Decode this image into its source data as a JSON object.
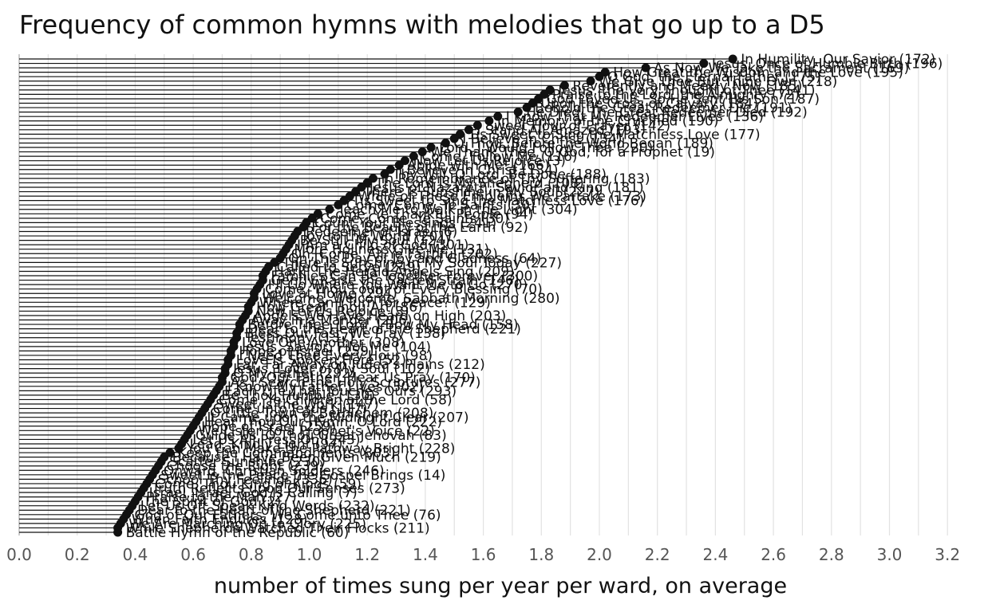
{
  "chart_data": {
    "type": "lollipop",
    "title": "Frequency of common hymns with melodies that go up to a D5",
    "xlabel": "number of times sung per year per ward, on average",
    "ylabel": "",
    "xlim": [
      0,
      3.3
    ],
    "xticks": [
      "0.0",
      "0.2",
      "0.4",
      "0.6",
      "0.8",
      "1.0",
      "1.2",
      "1.4",
      "1.6",
      "1.8",
      "2.0",
      "2.2",
      "2.4",
      "2.6",
      "2.8",
      "3.0",
      "3.2"
    ],
    "grid": "vertical",
    "points": [
      {
        "label": "In Humility, Our Savior (172)",
        "value": 2.46
      },
      {
        "label": "Jesus, Once of Humble Birth (196)",
        "value": 2.36
      },
      {
        "label": "As Now We Take the Sacrament (169)",
        "value": 2.16
      },
      {
        "label": "How Great the Wisdom and the Love (195)",
        "value": 2.02
      },
      {
        "label": "O God, the Eternal Father (175)",
        "value": 2.0
      },
      {
        "label": "We Give Thee But Thine Own (218)",
        "value": 1.97
      },
      {
        "label": "Reverently and Meekly Now (185)",
        "value": 1.88
      },
      {
        "label": "Jesus, the Very Thought of Thee (141)",
        "value": 1.83
      },
      {
        "label": "Praise to the Lord, the Almighty (72)",
        "value": 1.81
      },
      {
        "label": "God Loved Us, So He Sent His Son (187)",
        "value": 1.79
      },
      {
        "label": "Upon the Cross of Calvary (184)",
        "value": 1.77
      },
      {
        "label": "Behold the Great Redeemer Die (191)",
        "value": 1.75
      },
      {
        "label": "He Died! The Great Redeemer Died (192)",
        "value": 1.72
      },
      {
        "label": "I Know That My Redeemer Lives (136)",
        "value": 1.65
      },
      {
        "label": "In Memory of the Crucified (190)",
        "value": 1.62
      },
      {
        "label": "Sweet Hour of Prayer (142)",
        "value": 1.58
      },
      {
        "label": "I Stand All Amazed (193)",
        "value": 1.55
      },
      {
        "label": "Tis Sweet to Sing the Matchless Love (177)",
        "value": 1.52
      },
      {
        "label": "I Believe in Christ (134)",
        "value": 1.5
      },
      {
        "label": "O Thou, Before the World Began (189)",
        "value": 1.47
      },
      {
        "label": "Lord, I Would Follow Thee (220)",
        "value": 1.42
      },
      {
        "label": "We Thank Thee, O God, for a Prophet (19)",
        "value": 1.39
      },
      {
        "label": "Come, Follow Me (116)",
        "value": 1.36
      },
      {
        "label": "Now Let Us Rejoice (3)",
        "value": 1.33
      },
      {
        "label": "Abide with Me! (166)",
        "value": 1.31
      },
      {
        "label": "I Believe in Christ (134)",
        "value": 1.28
      },
      {
        "label": "Thy Will, O Lord, Be Done (188)",
        "value": 1.26
      },
      {
        "label": "In Remembrance of Thy Suffering (183)",
        "value": 1.22
      },
      {
        "label": "The Lord Is My Shepherd (108)",
        "value": 1.2
      },
      {
        "label": "Jesus of Nazareth, Savior and King (181)",
        "value": 1.18
      },
      {
        "label": "There Is Sunshine in My Soul (227)",
        "value": 1.16
      },
      {
        "label": "While of These Emblems We Partake (173)",
        "value": 1.14
      },
      {
        "label": "Tis Sweet to Sing the Matchless Love (176)",
        "value": 1.12
      },
      {
        "label": "Come, Come, Ye Saints (30)",
        "value": 1.1
      },
      {
        "label": "Teach Me to Walk in the Light (304)",
        "value": 1.07
      },
      {
        "label": "Come, Ye Thankful People (94)",
        "value": 1.03
      },
      {
        "label": "Come, Come, Ye Saints (30)",
        "value": 1.01
      },
      {
        "label": "Count Your Blessings (241)",
        "value": 0.99
      },
      {
        "label": "For the Beauty of the Earth (92)",
        "value": 0.98
      },
      {
        "label": "Redeemer of Israel (6)",
        "value": 0.96
      },
      {
        "label": "Joy to the World (201)",
        "value": 0.95
      },
      {
        "label": "Be Still, My Soul (124)",
        "value": 0.94
      },
      {
        "label": "I Am a Child of God (301)",
        "value": 0.93
      },
      {
        "label": "More Holiness Give Me (131)",
        "value": 0.92
      },
      {
        "label": "Oh, Come, All Ye Faithful (202)",
        "value": 0.91
      },
      {
        "label": "On This Day of Joy and Gladness (64)",
        "value": 0.9
      },
      {
        "label": "There Is Sunshine in My Soul Today (227)",
        "value": 0.88
      },
      {
        "label": "Called to Serve (249)",
        "value": 0.86
      },
      {
        "label": "Hark! The Herald Angels Sing (209)",
        "value": 0.85
      },
      {
        "label": "Families Can Be Together Forever (300)",
        "value": 0.84
      },
      {
        "label": "Gently Raise the Sacred Strain (146)",
        "value": 0.84
      },
      {
        "label": "I'll Go Where You Want Me to Go (270)",
        "value": 0.83
      },
      {
        "label": "Come, Thou Fount of Every Blessing (70)",
        "value": 0.82
      },
      {
        "label": "Love at Home (294)",
        "value": 0.81
      },
      {
        "label": "Welcome, Welcome, Sabbath Morning (280)",
        "value": 0.81
      },
      {
        "label": "Where Can I Turn for Peace? (129)",
        "value": 0.8
      },
      {
        "label": "How Great Thou Art (86)",
        "value": 0.79
      },
      {
        "label": "Now Let Us Rejoice (3)",
        "value": 0.79
      },
      {
        "label": "Angels We Have Heard on High (203)",
        "value": 0.78
      },
      {
        "label": "Away in a Manger (206)",
        "value": 0.77
      },
      {
        "label": "Before Thee, Lord, I Bow My Head (158)",
        "value": 0.76
      },
      {
        "label": "Dear to the Heart of the Shepherd (221)",
        "value": 0.76
      },
      {
        "label": "Bless Our Fast, We Pray (138)",
        "value": 0.75
      },
      {
        "label": "Testimony (137)",
        "value": 0.75
      },
      {
        "label": "Love One Another (308)",
        "value": 0.74
      },
      {
        "label": "Jesus, Savior, Pilot Me (104)",
        "value": 0.74
      },
      {
        "label": "Hope of Israel (259)",
        "value": 0.73
      },
      {
        "label": "I Need Thee Every Hour (98)",
        "value": 0.73
      },
      {
        "label": "Love Is Spoken Here (52)",
        "value": 0.72
      },
      {
        "label": "Far, Far Away on Judea's Plains (212)",
        "value": 0.72
      },
      {
        "label": "Jesus, Lover of My Soul (102)",
        "value": 0.71
      },
      {
        "label": "O My Father (292)",
        "value": 0.71
      },
      {
        "label": "God, Our Father, Hear Us Pray (170)",
        "value": 0.7
      },
      {
        "label": "As I Search the Holy Scriptures (277)",
        "value": 0.7
      },
      {
        "label": "I Know My Father Lives (302)",
        "value": 0.69
      },
      {
        "label": "Each Life That Touches Ours (293)",
        "value": 0.68
      },
      {
        "label": "Be Thou Humble (130)",
        "value": 0.67
      },
      {
        "label": "Come, Ye Children of the Lord (58)",
        "value": 0.66
      },
      {
        "label": "Sweet Is the Work (147)",
        "value": 0.65
      },
      {
        "label": "Come unto Jesus (117)",
        "value": 0.64
      },
      {
        "label": "O Little Town of Bethlehem (208)",
        "value": 0.63
      },
      {
        "label": "It Came upon the Midnight Clear (207)",
        "value": 0.62
      },
      {
        "label": "Hear Thou Our Hymn, O Lord (222)",
        "value": 0.61
      },
      {
        "label": "Hope of Israel (259)",
        "value": 0.6
      },
      {
        "label": "We Listen to a Prophet's Voice (22)",
        "value": 0.59
      },
      {
        "label": "Guide Us, O Thou Great Jehovah (83)",
        "value": 0.58
      },
      {
        "label": "Let Us All Press On (243)",
        "value": 0.57
      },
      {
        "label": "Lead, Kindly Light (97)",
        "value": 0.56
      },
      {
        "label": "You Can Make the Pathway Bright (228)",
        "value": 0.55
      },
      {
        "label": "Keep the Commandments (303)",
        "value": 0.52
      },
      {
        "label": "Because I Have Been Given Much (219)",
        "value": 0.5
      },
      {
        "label": "Scatter Sunshine (230)",
        "value": 0.49
      },
      {
        "label": "Choose the Right (239)",
        "value": 0.48
      },
      {
        "label": "Onward, Christian Soldiers (246)",
        "value": 0.47
      },
      {
        "label": "Sweet Is the Peace the Gospel Brings (14)",
        "value": 0.46
      },
      {
        "label": "School Thy Feelings (336)",
        "value": 0.45
      },
      {
        "label": "Come, Thou King of Kings (59)",
        "value": 0.44
      },
      {
        "label": "Truth Reflects upon Our Senses (273)",
        "value": 0.43
      },
      {
        "label": "Israel, Israel, God Is Calling (7)",
        "value": 0.42
      },
      {
        "label": "Praise to the Man (27)",
        "value": 0.41
      },
      {
        "label": "The Spirit of God (2)",
        "value": 0.4
      },
      {
        "label": "Let Us Oft Speak Kind Words (232)",
        "value": 0.39
      },
      {
        "label": "Dear to the Heart of the Shepherd (221)",
        "value": 0.38
      },
      {
        "label": "God of Our Fathers, We Come unto Thee (76)",
        "value": 0.37
      },
      {
        "label": "When Faith Endures (128)",
        "value": 0.36
      },
      {
        "label": "We Are Marching On to Glory (225)",
        "value": 0.35
      },
      {
        "label": "While Shepherds Watched Their Flocks (211)",
        "value": 0.34
      },
      {
        "label": "Battle Hymn of the Republic (60)",
        "value": 0.34
      }
    ]
  }
}
